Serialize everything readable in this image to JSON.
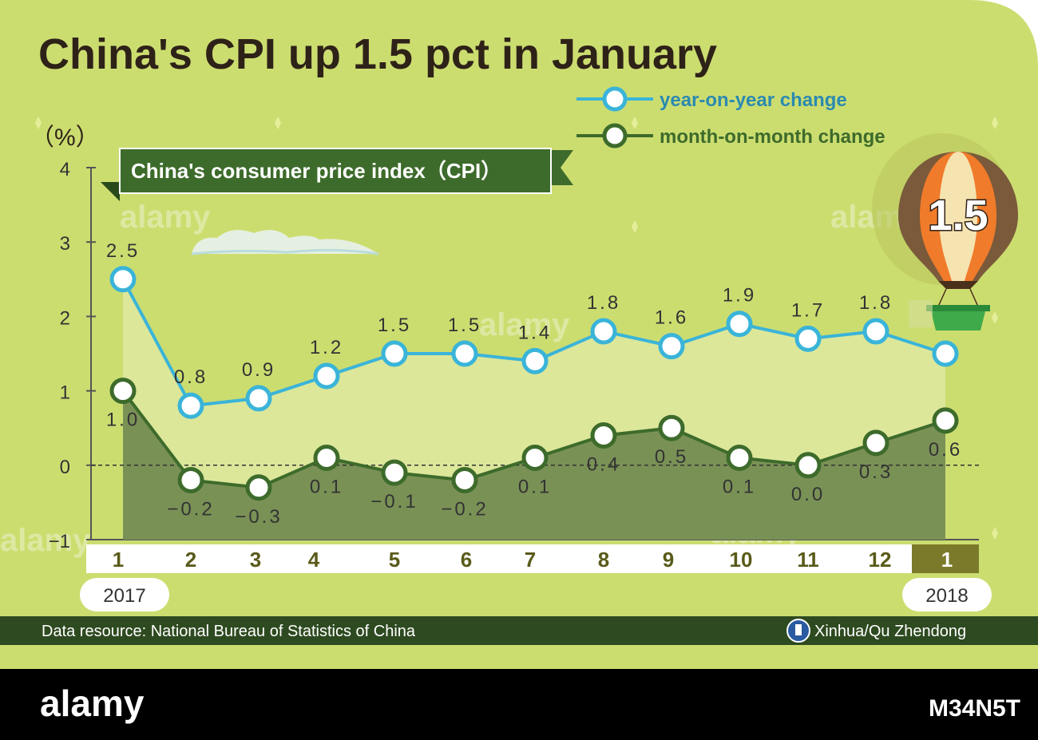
{
  "title": "China's CPI up 1.5 pct in January",
  "banner": "China's consumer price index（CPI）",
  "y_unit": "（%）",
  "balloon_value": "1.5",
  "year_start": "2017",
  "year_end": "2018",
  "source": "Data resource: National Bureau of Statistics of China",
  "credit": "Xinhua/Qu Zhendong",
  "watermark": "alamy",
  "stock_id": "M34N5T",
  "legend": [
    {
      "label": "year-on-year change",
      "color": "#3ab4d8"
    },
    {
      "label": "month-on-month change",
      "color": "#3d6b2b"
    }
  ],
  "chart_data": {
    "type": "line",
    "categories": [
      "1",
      "2",
      "3",
      "4",
      "5",
      "6",
      "7",
      "8",
      "9",
      "10",
      "11",
      "12",
      "1"
    ],
    "ylim": [
      -1,
      4
    ],
    "yticks": [
      "4",
      "3",
      "2",
      "1",
      "0",
      "−1"
    ],
    "series": [
      {
        "name": "year-on-year change",
        "values": [
          2.5,
          0.8,
          0.9,
          1.2,
          1.5,
          1.5,
          1.4,
          1.8,
          1.6,
          1.9,
          1.7,
          1.8,
          1.5
        ],
        "labels": [
          "2.5",
          "0.8",
          "0.9",
          "1.2",
          "1.5",
          "1.5",
          "1.4",
          "1.8",
          "1.6",
          "1.9",
          "1.7",
          "1.8",
          ""
        ]
      },
      {
        "name": "month-on-month change",
        "values": [
          1.0,
          -0.2,
          -0.3,
          0.1,
          -0.1,
          -0.2,
          0.1,
          0.4,
          0.5,
          0.1,
          0.0,
          0.3,
          0.6
        ],
        "labels": [
          "1.0",
          "−0.2",
          "−0.3",
          "0.1",
          "−0.1",
          "−0.2",
          "0.1",
          "0.4",
          "0.5",
          "0.1",
          "0.0",
          "0.3",
          "0.6"
        ]
      }
    ]
  }
}
